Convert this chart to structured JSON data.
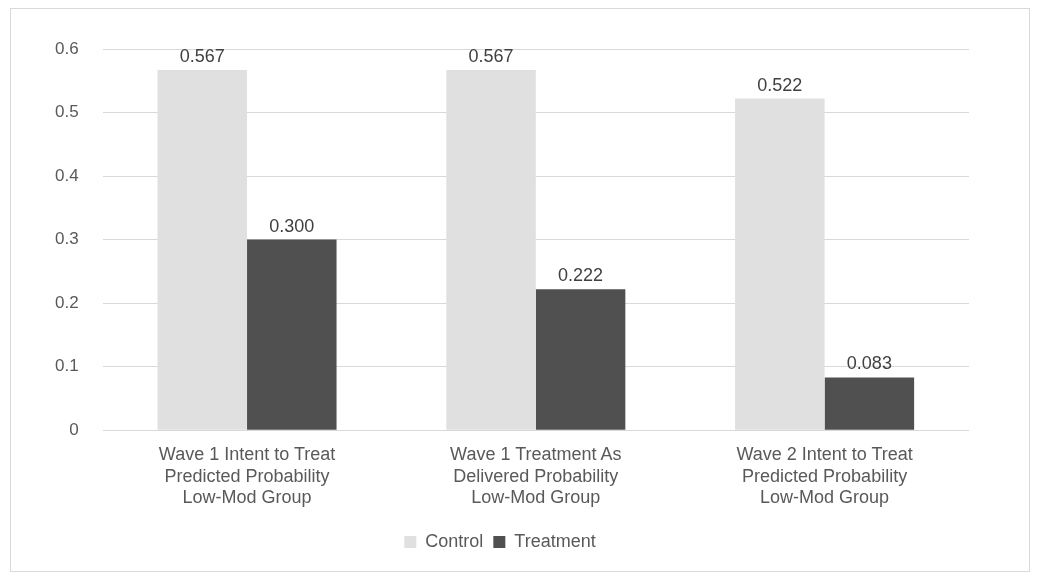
{
  "chart_data": {
    "type": "bar",
    "categories": [
      "Wave 1 Intent to Treat Predicted Probability Low-Mod Group",
      "Wave 1 Treatment As Delivered Probability Low-Mod Group",
      "Wave 2 Intent to Treat Predicted Probability Low-Mod Group"
    ],
    "series": [
      {
        "name": "Control",
        "color": "#e0e0e0",
        "values": [
          0.567,
          0.567,
          0.522
        ],
        "value_labels": [
          "0.567",
          "0.567",
          "0.522"
        ]
      },
      {
        "name": "Treatment",
        "color": "#505050",
        "values": [
          0.3,
          0.222,
          0.083
        ],
        "value_labels": [
          "0.300",
          "0.222",
          "0.083"
        ]
      }
    ],
    "ylim": [
      0,
      0.6
    ],
    "yticks": [
      0,
      0.1,
      0.2,
      0.3,
      0.4,
      0.5,
      0.6
    ],
    "grid": "y",
    "legend": "bottom"
  }
}
